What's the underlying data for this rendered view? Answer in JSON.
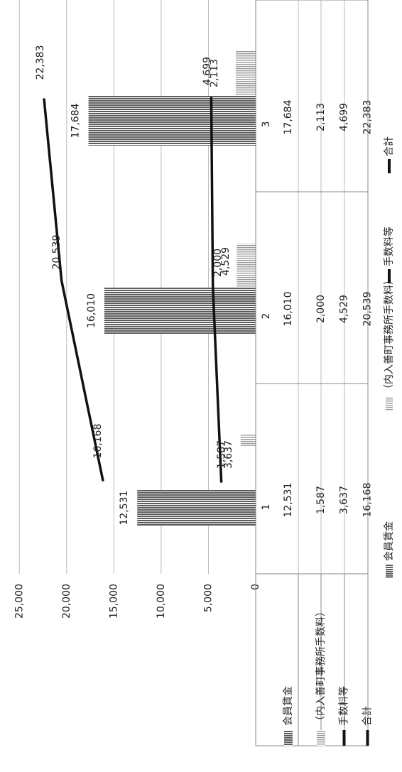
{
  "chart_data": {
    "type": "bar",
    "orientation": "rotated-90",
    "categories": [
      "1",
      "2",
      "3"
    ],
    "y_ticks": [
      "0",
      "5,000",
      "10,000",
      "15,000",
      "20,000",
      "25,000"
    ],
    "ylim": [
      0,
      27500
    ],
    "grid": true,
    "series": [
      {
        "name": "会員賃金",
        "kind": "bar",
        "values": [
          12531,
          16010,
          17684
        ],
        "labels": [
          "12,531",
          "16,010",
          "17,684"
        ],
        "fill": "#6e6e6e"
      },
      {
        "name": "（内入善町事務所手数料）",
        "kind": "bar",
        "values": [
          1587,
          2000,
          2113
        ],
        "labels": [
          "1,587",
          "2,000",
          "2,113"
        ],
        "fill": "#b8b8b8"
      },
      {
        "name": "手数料等",
        "kind": "line",
        "values": [
          3637,
          4529,
          4699
        ],
        "labels": [
          "3,637",
          "4,529",
          "4,699"
        ],
        "color": "#111111"
      },
      {
        "name": "合計",
        "kind": "line",
        "values": [
          16168,
          20539,
          22383
        ],
        "labels": [
          "16,168",
          "20,539",
          "22,383"
        ],
        "color": "#111111"
      }
    ],
    "table": {
      "row_headers": [
        "会員賃金",
        "（内入善町事務所手数料）",
        "手数料等",
        "合計"
      ],
      "rows": [
        [
          "12,531",
          "16,010",
          "17,684"
        ],
        [
          "1,587",
          "2,000",
          "2,113"
        ],
        [
          "3,637",
          "4,529",
          "4,699"
        ],
        [
          "16,168",
          "20,539",
          "22,383"
        ]
      ]
    },
    "legend": [
      "会員賃金",
      "（内入善町事務所手数料）",
      "手数料等",
      "合計"
    ],
    "legend_position": "bottom"
  }
}
